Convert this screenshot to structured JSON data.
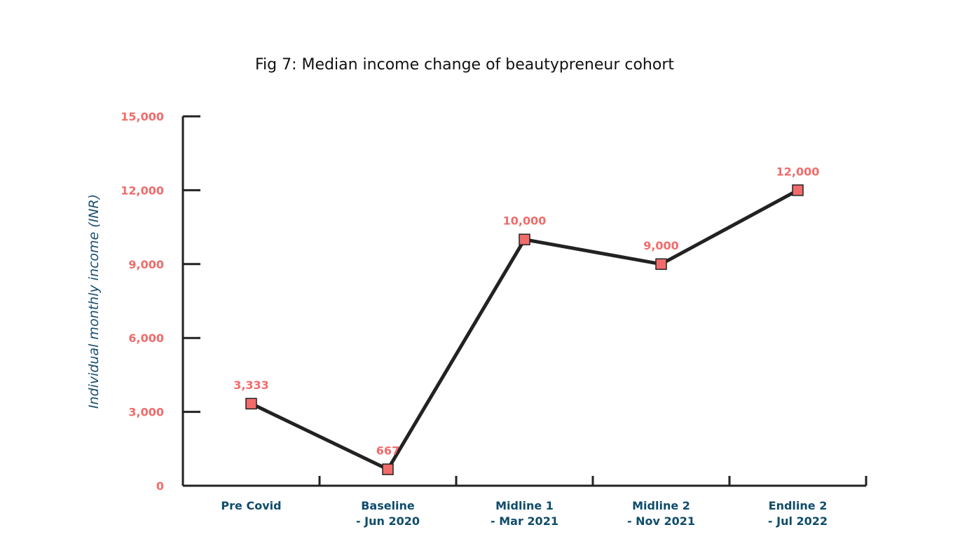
{
  "chart_data": {
    "type": "line",
    "title": "Fig 7: Median income change of beautypreneur cohort",
    "ylabel": "Individual monthly income (INR)",
    "xlabel": "",
    "categories": [
      [
        "Pre Covid"
      ],
      [
        "Baseline",
        "- Jun 2020"
      ],
      [
        "Midline 1",
        "- Mar 2021"
      ],
      [
        "Midline 2",
        "- Nov 2021"
      ],
      [
        "Endline 2",
        "- Jul 2022"
      ]
    ],
    "series": [
      {
        "values": [
          3333,
          667,
          10000,
          9000,
          12000
        ]
      }
    ],
    "data_labels": [
      "3,333",
      "667",
      "10,000",
      "9,000",
      "12,000"
    ],
    "ylim": [
      0,
      15000
    ],
    "yticks": [
      0,
      3000,
      6000,
      9000,
      12000,
      15000
    ],
    "ytick_labels": [
      "0",
      "3,000",
      "6,000",
      "9,000",
      "12,000",
      "15,000"
    ],
    "grid": false,
    "colors": {
      "line": "#222222",
      "marker_fill": "#f26b6b",
      "ytick_text": "#f26b6b",
      "xtick_text": "#0f4c6b",
      "ylabel_text": "#1b4f72",
      "data_label_text": "#f26b6b"
    }
  }
}
